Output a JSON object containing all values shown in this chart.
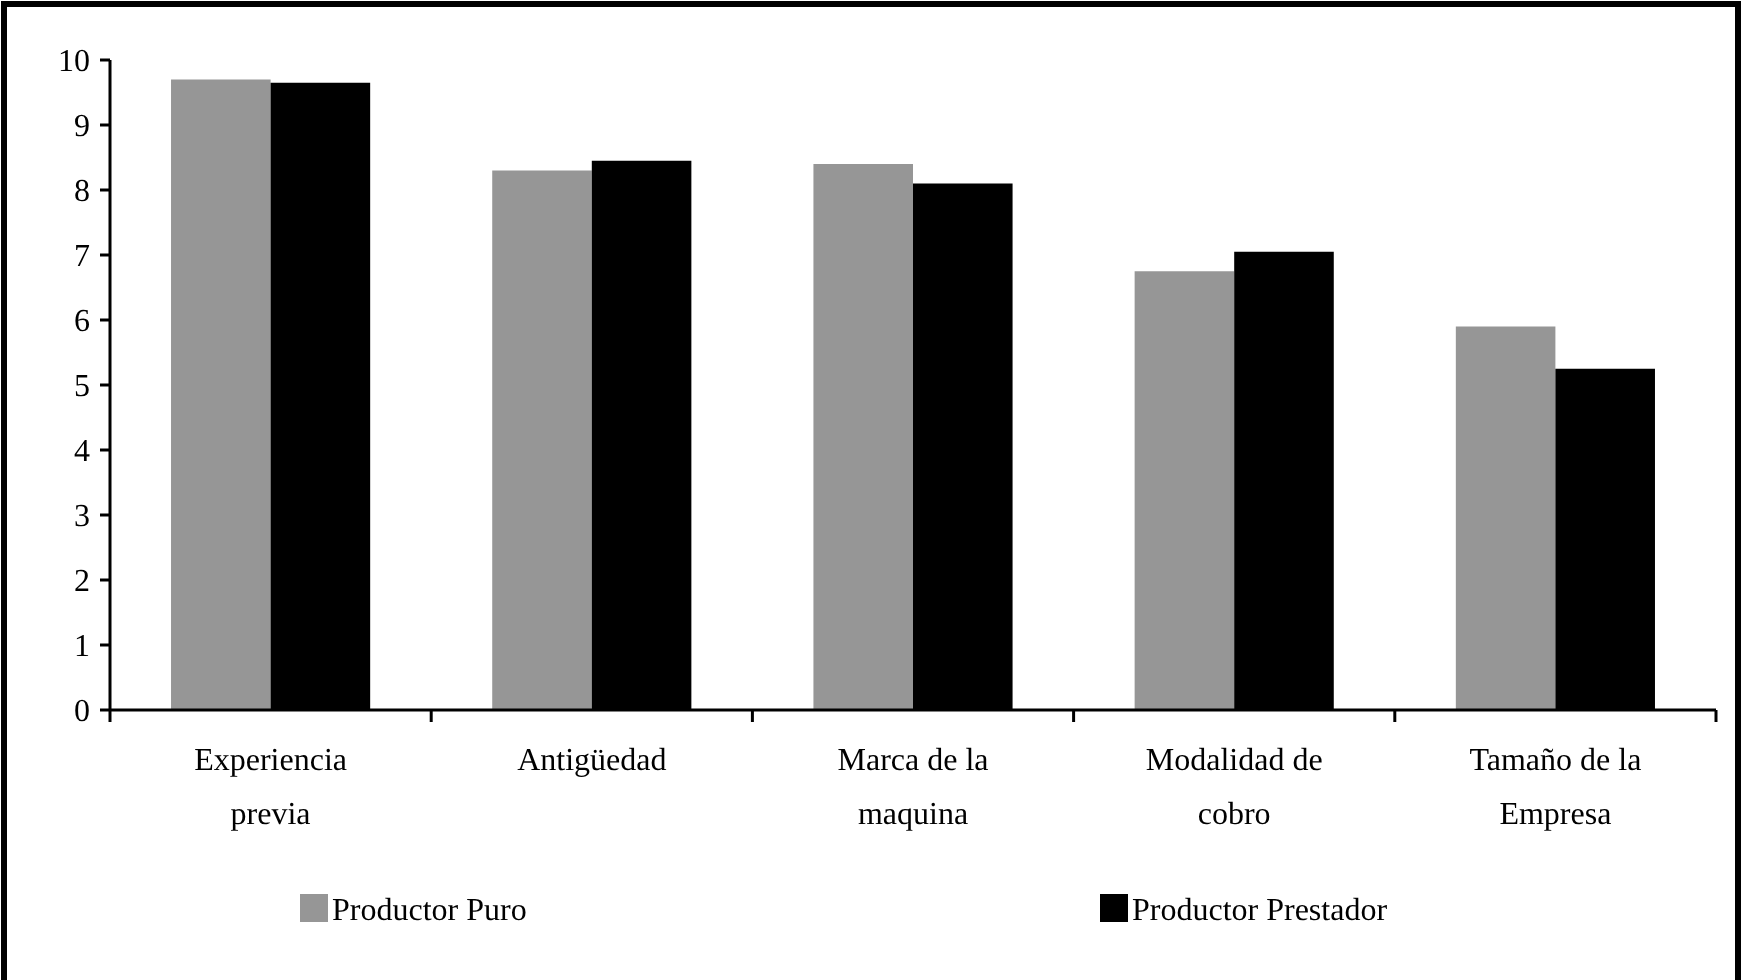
{
  "chart_data": {
    "type": "bar",
    "categories": [
      "Experiencia previa",
      "Antigüedad",
      "Marca de la maquina",
      "Modalidad de cobro",
      "Tamaño de la Empresa"
    ],
    "series": [
      {
        "name": "Productor Puro",
        "color": "#969696",
        "values": [
          9.7,
          8.3,
          8.4,
          6.75,
          5.9
        ]
      },
      {
        "name": "Productor Prestador",
        "color": "#000000",
        "values": [
          9.65,
          8.45,
          8.1,
          7.05,
          5.25
        ]
      }
    ],
    "ylim": [
      0,
      10
    ],
    "yticks": [
      0,
      1,
      2,
      3,
      4,
      5,
      6,
      7,
      8,
      9,
      10
    ],
    "grid": false,
    "legend": "bottom"
  }
}
